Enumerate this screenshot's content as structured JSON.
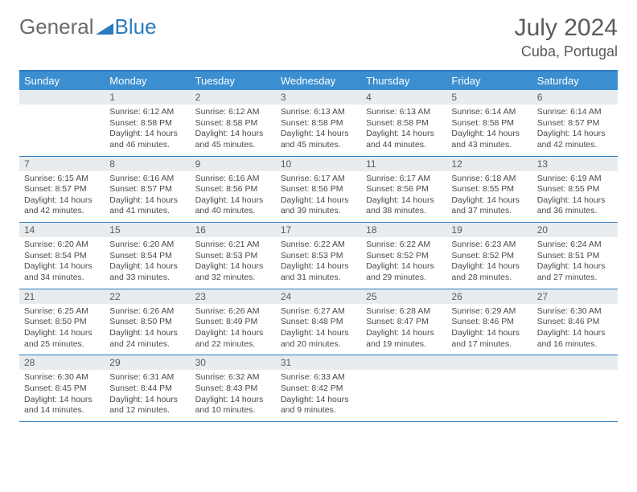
{
  "brand": {
    "part1": "General",
    "part2": "Blue"
  },
  "header": {
    "month_title": "July 2024",
    "location": "Cuba, Portugal"
  },
  "colors": {
    "header_band": "#3b8fd1",
    "day_band": "#e8ecef",
    "rule": "#2b7bbf",
    "text": "#4a4a4a"
  },
  "days_of_week": [
    "Sunday",
    "Monday",
    "Tuesday",
    "Wednesday",
    "Thursday",
    "Friday",
    "Saturday"
  ],
  "weeks": [
    {
      "nums": [
        "",
        "1",
        "2",
        "3",
        "4",
        "5",
        "6"
      ],
      "cells": [
        null,
        {
          "sunrise": "6:12 AM",
          "sunset": "8:58 PM",
          "dl_h": 14,
          "dl_m": 46
        },
        {
          "sunrise": "6:12 AM",
          "sunset": "8:58 PM",
          "dl_h": 14,
          "dl_m": 45
        },
        {
          "sunrise": "6:13 AM",
          "sunset": "8:58 PM",
          "dl_h": 14,
          "dl_m": 45
        },
        {
          "sunrise": "6:13 AM",
          "sunset": "8:58 PM",
          "dl_h": 14,
          "dl_m": 44
        },
        {
          "sunrise": "6:14 AM",
          "sunset": "8:58 PM",
          "dl_h": 14,
          "dl_m": 43
        },
        {
          "sunrise": "6:14 AM",
          "sunset": "8:57 PM",
          "dl_h": 14,
          "dl_m": 42
        }
      ]
    },
    {
      "nums": [
        "7",
        "8",
        "9",
        "10",
        "11",
        "12",
        "13"
      ],
      "cells": [
        {
          "sunrise": "6:15 AM",
          "sunset": "8:57 PM",
          "dl_h": 14,
          "dl_m": 42
        },
        {
          "sunrise": "6:16 AM",
          "sunset": "8:57 PM",
          "dl_h": 14,
          "dl_m": 41
        },
        {
          "sunrise": "6:16 AM",
          "sunset": "8:56 PM",
          "dl_h": 14,
          "dl_m": 40
        },
        {
          "sunrise": "6:17 AM",
          "sunset": "8:56 PM",
          "dl_h": 14,
          "dl_m": 39
        },
        {
          "sunrise": "6:17 AM",
          "sunset": "8:56 PM",
          "dl_h": 14,
          "dl_m": 38
        },
        {
          "sunrise": "6:18 AM",
          "sunset": "8:55 PM",
          "dl_h": 14,
          "dl_m": 37
        },
        {
          "sunrise": "6:19 AM",
          "sunset": "8:55 PM",
          "dl_h": 14,
          "dl_m": 36
        }
      ]
    },
    {
      "nums": [
        "14",
        "15",
        "16",
        "17",
        "18",
        "19",
        "20"
      ],
      "cells": [
        {
          "sunrise": "6:20 AM",
          "sunset": "8:54 PM",
          "dl_h": 14,
          "dl_m": 34
        },
        {
          "sunrise": "6:20 AM",
          "sunset": "8:54 PM",
          "dl_h": 14,
          "dl_m": 33
        },
        {
          "sunrise": "6:21 AM",
          "sunset": "8:53 PM",
          "dl_h": 14,
          "dl_m": 32
        },
        {
          "sunrise": "6:22 AM",
          "sunset": "8:53 PM",
          "dl_h": 14,
          "dl_m": 31
        },
        {
          "sunrise": "6:22 AM",
          "sunset": "8:52 PM",
          "dl_h": 14,
          "dl_m": 29
        },
        {
          "sunrise": "6:23 AM",
          "sunset": "8:52 PM",
          "dl_h": 14,
          "dl_m": 28
        },
        {
          "sunrise": "6:24 AM",
          "sunset": "8:51 PM",
          "dl_h": 14,
          "dl_m": 27
        }
      ]
    },
    {
      "nums": [
        "21",
        "22",
        "23",
        "24",
        "25",
        "26",
        "27"
      ],
      "cells": [
        {
          "sunrise": "6:25 AM",
          "sunset": "8:50 PM",
          "dl_h": 14,
          "dl_m": 25
        },
        {
          "sunrise": "6:26 AM",
          "sunset": "8:50 PM",
          "dl_h": 14,
          "dl_m": 24
        },
        {
          "sunrise": "6:26 AM",
          "sunset": "8:49 PM",
          "dl_h": 14,
          "dl_m": 22
        },
        {
          "sunrise": "6:27 AM",
          "sunset": "8:48 PM",
          "dl_h": 14,
          "dl_m": 20
        },
        {
          "sunrise": "6:28 AM",
          "sunset": "8:47 PM",
          "dl_h": 14,
          "dl_m": 19
        },
        {
          "sunrise": "6:29 AM",
          "sunset": "8:46 PM",
          "dl_h": 14,
          "dl_m": 17
        },
        {
          "sunrise": "6:30 AM",
          "sunset": "8:46 PM",
          "dl_h": 14,
          "dl_m": 16
        }
      ]
    },
    {
      "nums": [
        "28",
        "29",
        "30",
        "31",
        "",
        "",
        ""
      ],
      "cells": [
        {
          "sunrise": "6:30 AM",
          "sunset": "8:45 PM",
          "dl_h": 14,
          "dl_m": 14
        },
        {
          "sunrise": "6:31 AM",
          "sunset": "8:44 PM",
          "dl_h": 14,
          "dl_m": 12
        },
        {
          "sunrise": "6:32 AM",
          "sunset": "8:43 PM",
          "dl_h": 14,
          "dl_m": 10
        },
        {
          "sunrise": "6:33 AM",
          "sunset": "8:42 PM",
          "dl_h": 14,
          "dl_m": 9
        },
        null,
        null,
        null
      ]
    }
  ]
}
